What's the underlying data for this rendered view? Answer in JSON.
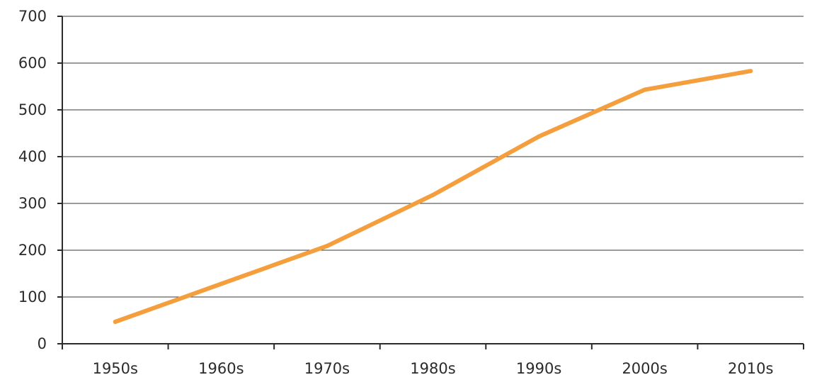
{
  "chart_data": {
    "type": "line",
    "title": "",
    "xlabel": "",
    "ylabel": "",
    "categories": [
      "1950s",
      "1960s",
      "1970s",
      "1980s",
      "1990s",
      "2000s",
      "2010s"
    ],
    "ylim": [
      0,
      700
    ],
    "yticks": [
      0,
      100,
      200,
      300,
      400,
      500,
      600,
      700
    ],
    "ytick_labels": [
      "0",
      "100",
      "200",
      "300",
      "400",
      "500",
      "600",
      "700"
    ],
    "grid": "horizontal",
    "legend": "none",
    "series": [
      {
        "values": [
          47,
          128,
          209,
          318,
          443,
          543,
          583
        ],
        "color": "#f59e3d"
      }
    ]
  }
}
